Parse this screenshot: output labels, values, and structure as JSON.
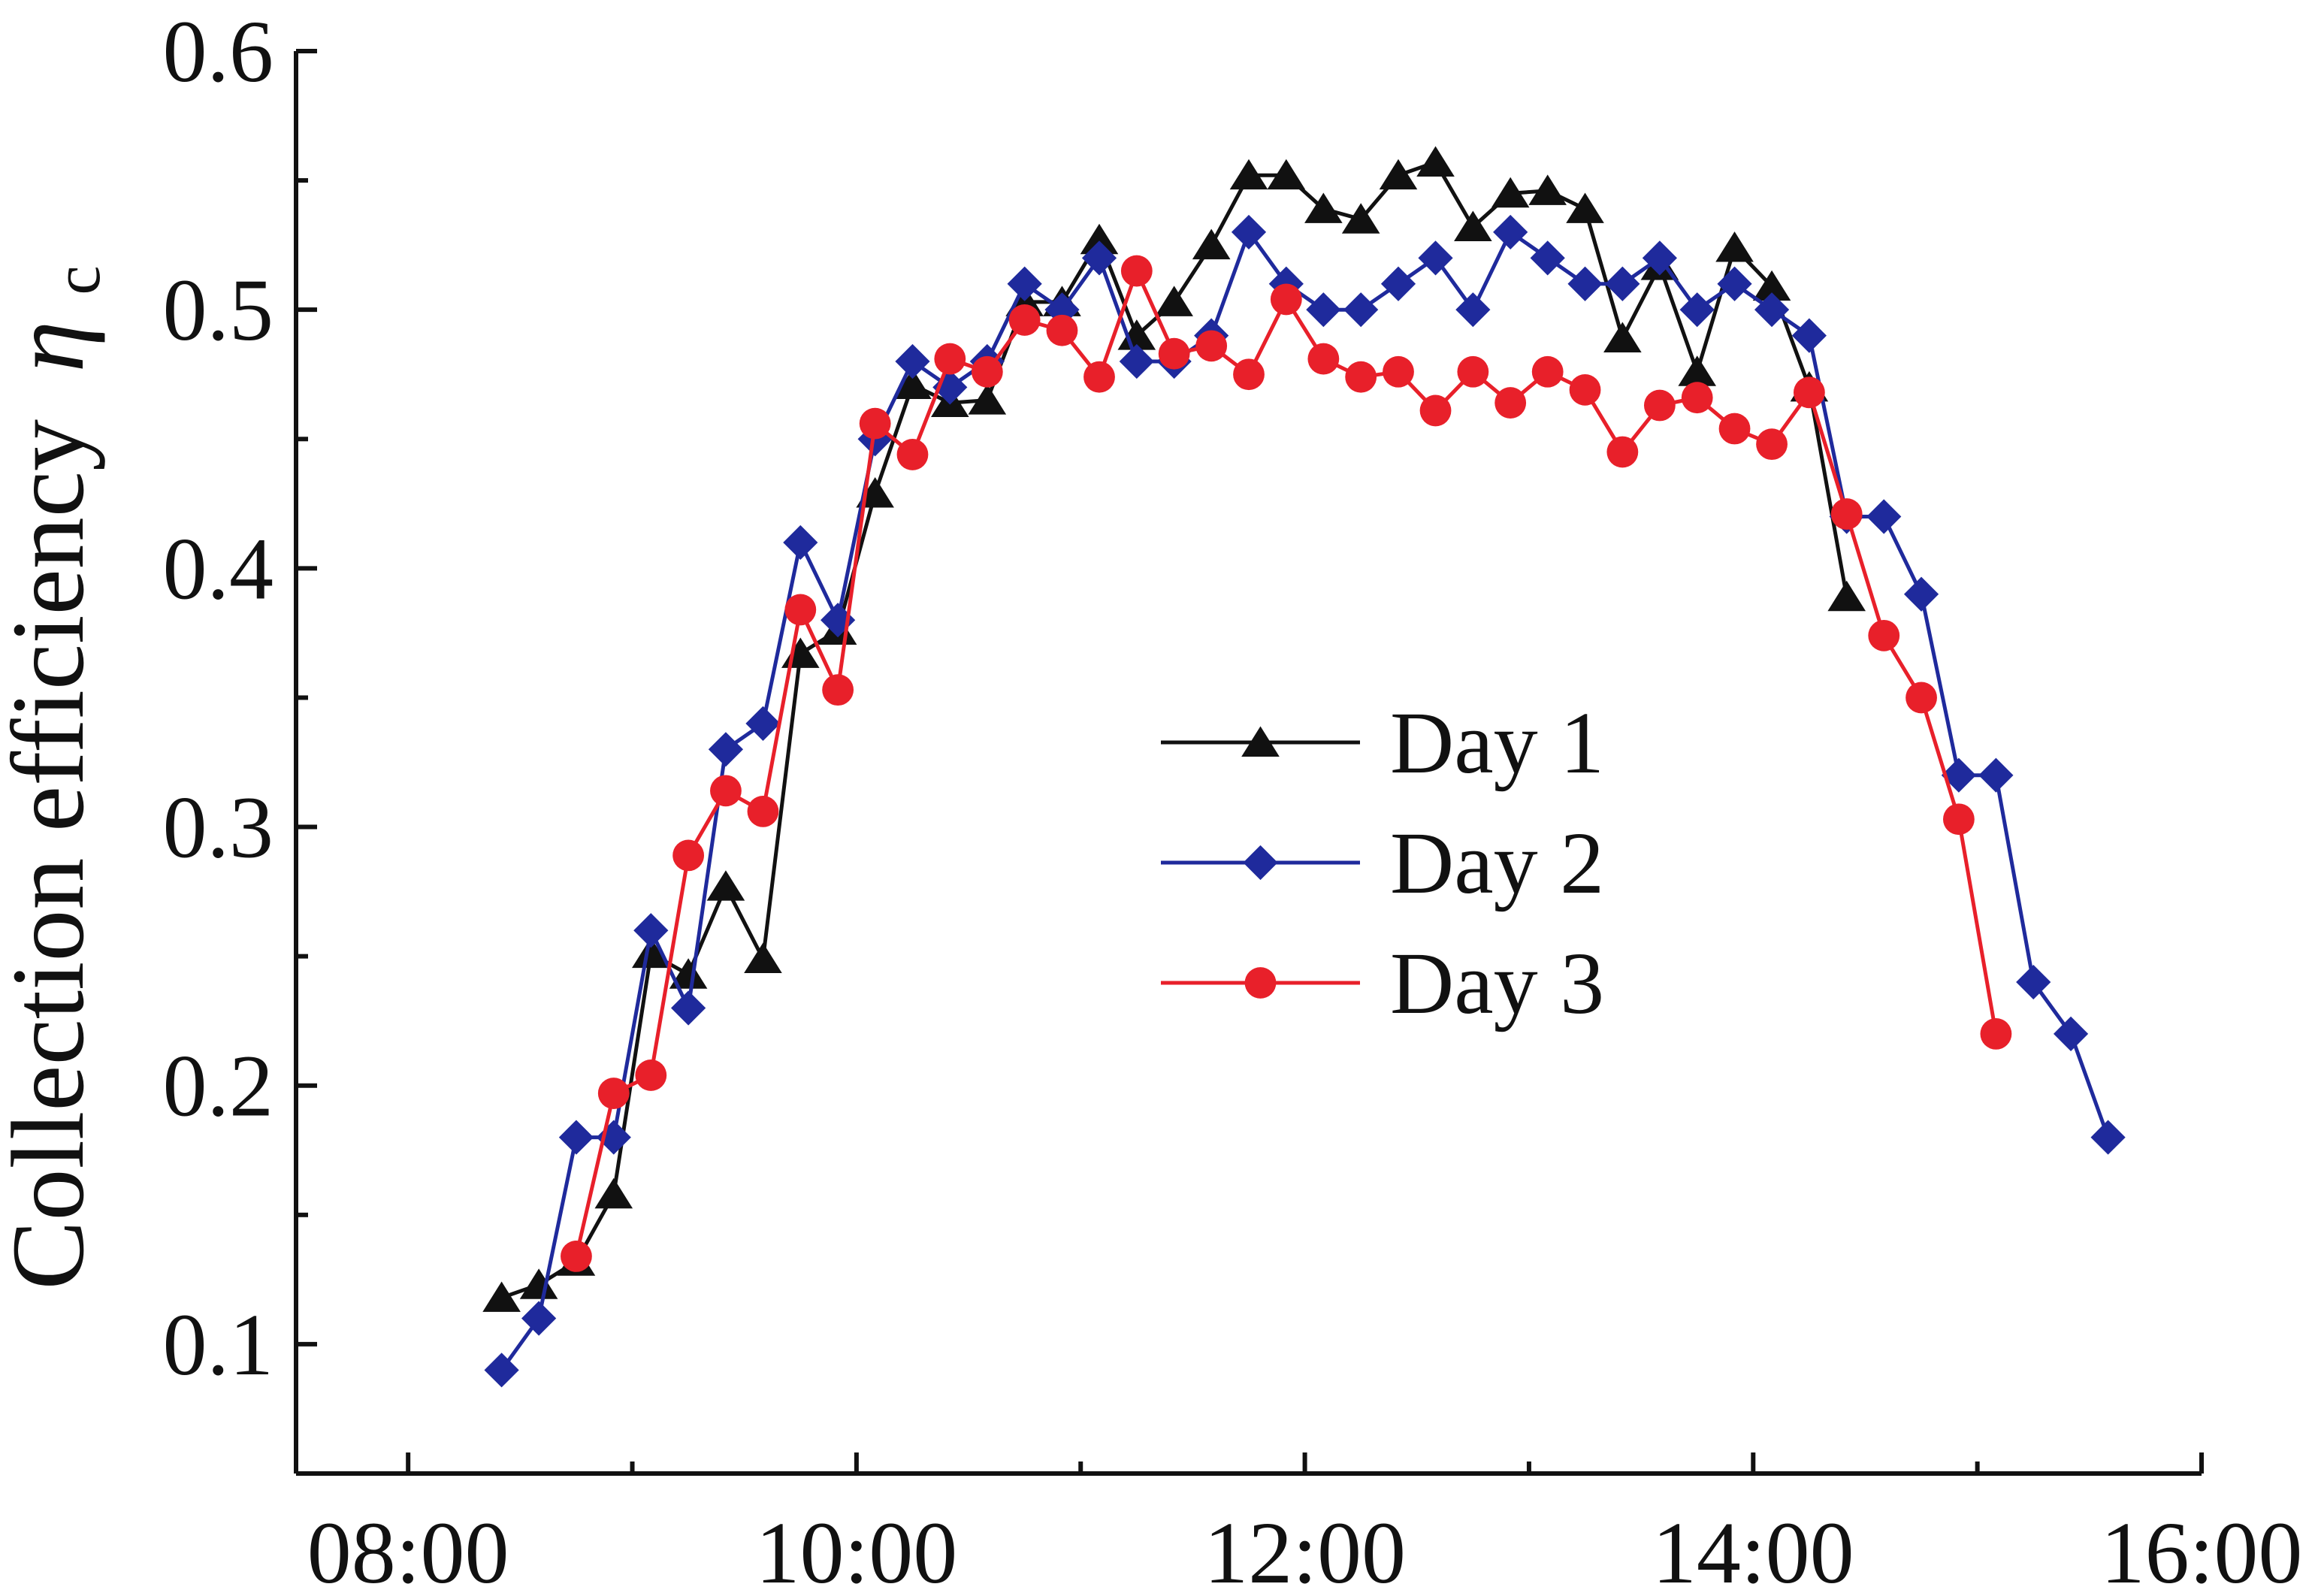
{
  "chart_data": {
    "type": "line",
    "title": "",
    "xlabel": "",
    "ylabel": "Collection efficiency",
    "ylabel_symbol": "η",
    "ylabel_subscript": "c",
    "xlim": [
      7.5,
      16.0
    ],
    "ylim": [
      0.05,
      0.6
    ],
    "x_ticks": [
      {
        "value": 8,
        "label": "08:00"
      },
      {
        "value": 10,
        "label": "10:00"
      },
      {
        "value": 12,
        "label": "12:00"
      },
      {
        "value": 14,
        "label": "14:00"
      },
      {
        "value": 16,
        "label": "16:00"
      }
    ],
    "x_minor_ticks": [
      9,
      11,
      13,
      15
    ],
    "y_ticks": [
      {
        "value": 0.1,
        "label": "0.1"
      },
      {
        "value": 0.2,
        "label": "0.2"
      },
      {
        "value": 0.3,
        "label": "0.3"
      },
      {
        "value": 0.4,
        "label": "0.4"
      },
      {
        "value": 0.5,
        "label": "0.5"
      },
      {
        "value": 0.6,
        "label": "0.6"
      }
    ],
    "y_minor_ticks": [
      0.15,
      0.25,
      0.35,
      0.45,
      0.55
    ],
    "grid": false,
    "legend_position": "center",
    "series": [
      {
        "name": "Day 1",
        "color": "#111111",
        "marker": "triangle",
        "x": [
          8.417,
          8.583,
          8.75,
          8.917,
          9.083,
          9.25,
          9.417,
          9.583,
          9.75,
          9.917,
          10.083,
          10.25,
          10.417,
          10.583,
          10.75,
          10.917,
          11.083,
          11.25,
          11.417,
          11.583,
          11.75,
          11.917,
          12.083,
          12.25,
          12.417,
          12.583,
          12.75,
          12.917,
          13.083,
          13.25,
          13.417,
          13.583,
          13.75,
          13.917,
          14.083,
          14.25,
          14.417
        ],
        "values": [
          0.118,
          0.123,
          0.132,
          0.158,
          0.251,
          0.243,
          0.277,
          0.249,
          0.367,
          0.376,
          0.429,
          0.471,
          0.464,
          0.465,
          0.503,
          0.503,
          0.527,
          0.49,
          0.503,
          0.525,
          0.552,
          0.552,
          0.539,
          0.535,
          0.552,
          0.557,
          0.532,
          0.545,
          0.546,
          0.539,
          0.489,
          0.517,
          0.476,
          0.524,
          0.509,
          0.47,
          0.389
        ]
      },
      {
        "name": "Day 2",
        "color": "#1f2a9c",
        "marker": "diamond",
        "x": [
          8.417,
          8.583,
          8.75,
          8.917,
          9.083,
          9.25,
          9.417,
          9.583,
          9.75,
          9.917,
          10.083,
          10.25,
          10.417,
          10.583,
          10.75,
          10.917,
          11.083,
          11.25,
          11.417,
          11.583,
          11.75,
          11.917,
          12.083,
          12.25,
          12.417,
          12.583,
          12.75,
          12.917,
          13.083,
          13.25,
          13.417,
          13.583,
          13.75,
          13.917,
          14.083,
          14.25,
          14.417,
          14.583,
          14.75,
          14.917,
          15.083,
          15.25,
          15.417,
          15.583
        ],
        "values": [
          0.09,
          0.11,
          0.18,
          0.18,
          0.26,
          0.23,
          0.33,
          0.34,
          0.41,
          0.38,
          0.45,
          0.48,
          0.47,
          0.48,
          0.51,
          0.5,
          0.52,
          0.48,
          0.48,
          0.49,
          0.53,
          0.51,
          0.5,
          0.5,
          0.51,
          0.52,
          0.5,
          0.53,
          0.52,
          0.51,
          0.51,
          0.52,
          0.5,
          0.51,
          0.5,
          0.49,
          0.42,
          0.42,
          0.39,
          0.32,
          0.32,
          0.24,
          0.22,
          0.18
        ]
      },
      {
        "name": "Day 3",
        "color": "#e8202a",
        "marker": "circle",
        "x": [
          8.75,
          8.917,
          9.083,
          9.25,
          9.417,
          9.583,
          9.75,
          9.917,
          10.083,
          10.25,
          10.417,
          10.583,
          10.75,
          10.917,
          11.083,
          11.25,
          11.417,
          11.583,
          11.75,
          11.917,
          12.083,
          12.25,
          12.417,
          12.583,
          12.75,
          12.917,
          13.083,
          13.25,
          13.417,
          13.583,
          13.75,
          13.917,
          14.083,
          14.25,
          14.417,
          14.583,
          14.75,
          14.917,
          15.083
        ],
        "values": [
          0.134,
          0.197,
          0.204,
          0.289,
          0.314,
          0.306,
          0.384,
          0.353,
          0.456,
          0.444,
          0.481,
          0.476,
          0.496,
          0.492,
          0.474,
          0.515,
          0.483,
          0.486,
          0.475,
          0.504,
          0.481,
          0.474,
          0.476,
          0.461,
          0.476,
          0.464,
          0.476,
          0.469,
          0.445,
          0.463,
          0.466,
          0.454,
          0.448,
          0.468,
          0.421,
          0.374,
          0.35,
          0.303,
          0.22
        ]
      }
    ]
  }
}
